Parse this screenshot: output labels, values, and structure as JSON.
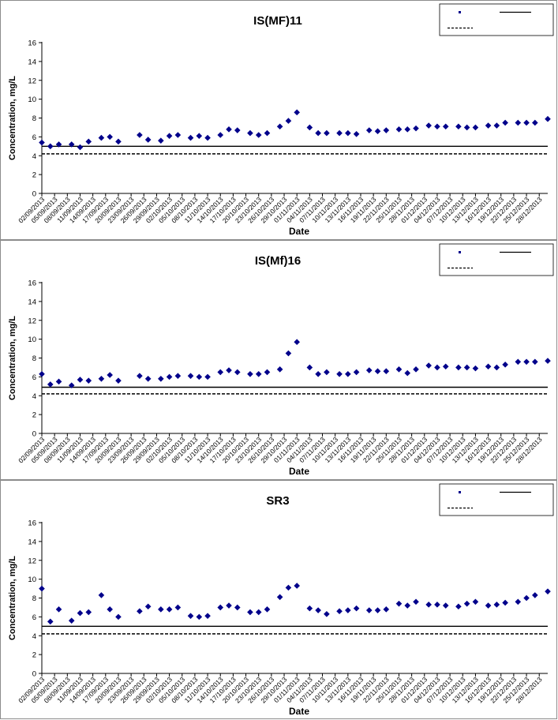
{
  "chart_data": [
    {
      "type": "scatter",
      "title": "IS(MF)11",
      "xlabel": "Date",
      "ylabel": "Concentration, mg/L",
      "ylim": [
        0,
        16
      ],
      "yticks": [
        0,
        2,
        4,
        6,
        8,
        10,
        12,
        14,
        16
      ],
      "x_range": [
        "02/09/2013",
        "30/12/2013"
      ],
      "xtick_labels": [
        "02/09/2013",
        "05/09/2013",
        "08/09/2013",
        "11/09/2013",
        "14/09/2013",
        "17/09/2013",
        "20/09/2013",
        "23/09/2013",
        "26/09/2013",
        "29/09/2013",
        "02/10/2013",
        "05/10/2013",
        "08/10/2013",
        "11/10/2013",
        "14/10/2013",
        "17/10/2013",
        "20/10/2013",
        "23/10/2013",
        "26/10/2013",
        "29/10/2013",
        "01/11/2013",
        "04/11/2013",
        "07/11/2013",
        "10/11/2013",
        "13/11/2013",
        "16/11/2013",
        "19/11/2013",
        "22/11/2013",
        "25/11/2013",
        "28/11/2013",
        "01/12/2013",
        "04/12/2013",
        "07/12/2013",
        "10/12/2013",
        "13/12/2013",
        "16/12/2013",
        "19/12/2013",
        "22/12/2013",
        "25/12/2013",
        "28/12/2013"
      ],
      "series": [
        {
          "kind": "points",
          "color": "#00008B",
          "x": [
            "02/09/2013",
            "04/09/2013",
            "06/09/2013",
            "09/09/2013",
            "11/09/2013",
            "13/09/2013",
            "16/09/2013",
            "18/09/2013",
            "20/09/2013",
            "25/09/2013",
            "27/09/2013",
            "30/09/2013",
            "02/10/2013",
            "04/10/2013",
            "07/10/2013",
            "09/10/2013",
            "11/10/2013",
            "14/10/2013",
            "16/10/2013",
            "18/10/2013",
            "21/10/2013",
            "23/10/2013",
            "25/10/2013",
            "28/10/2013",
            "30/10/2013",
            "01/11/2013",
            "04/11/2013",
            "06/11/2013",
            "08/11/2013",
            "11/11/2013",
            "13/11/2013",
            "15/11/2013",
            "18/11/2013",
            "20/11/2013",
            "22/11/2013",
            "25/11/2013",
            "27/11/2013",
            "29/11/2013",
            "02/12/2013",
            "04/12/2013",
            "06/12/2013",
            "09/12/2013",
            "11/12/2013",
            "13/12/2013",
            "16/12/2013",
            "18/12/2013",
            "20/12/2013",
            "23/12/2013",
            "25/12/2013",
            "27/12/2013",
            "30/12/2013"
          ],
          "y": [
            5.4,
            5.0,
            5.2,
            5.2,
            4.9,
            5.5,
            5.9,
            6.0,
            5.5,
            6.2,
            5.7,
            5.6,
            6.1,
            6.2,
            5.9,
            6.1,
            5.9,
            6.2,
            6.8,
            6.7,
            6.4,
            6.2,
            6.4,
            7.1,
            7.7,
            8.6,
            7.0,
            6.4,
            6.4,
            6.4,
            6.4,
            6.3,
            6.7,
            6.6,
            6.7,
            6.8,
            6.8,
            6.9,
            7.2,
            7.1,
            7.1,
            7.1,
            7.0,
            7.0,
            7.2,
            7.2,
            7.5,
            7.5,
            7.5,
            7.5,
            7.9
          ]
        },
        {
          "kind": "solid-line",
          "color": "#000000",
          "y": 5.0
        },
        {
          "kind": "dashed-line",
          "color": "#000000",
          "y": 4.2
        }
      ]
    },
    {
      "type": "scatter",
      "title": "IS(Mf)16",
      "xlabel": "Date",
      "ylabel": "Concentration, mg/L",
      "ylim": [
        0,
        16
      ],
      "yticks": [
        0,
        2,
        4,
        6,
        8,
        10,
        12,
        14,
        16
      ],
      "x_range": [
        "02/09/2013",
        "30/12/2013"
      ],
      "xtick_labels": [
        "02/09/2013",
        "05/09/2013",
        "08/09/2013",
        "11/09/2013",
        "14/09/2013",
        "17/09/2013",
        "20/09/2013",
        "23/09/2013",
        "26/09/2013",
        "29/09/2013",
        "02/10/2013",
        "05/10/2013",
        "08/10/2013",
        "11/10/2013",
        "14/10/2013",
        "17/10/2013",
        "20/10/2013",
        "23/10/2013",
        "26/10/2013",
        "29/10/2013",
        "01/11/2013",
        "04/11/2013",
        "07/11/2013",
        "10/11/2013",
        "13/11/2013",
        "16/11/2013",
        "19/11/2013",
        "22/11/2013",
        "25/11/2013",
        "28/11/2013",
        "01/12/2013",
        "04/12/2013",
        "07/12/2013",
        "10/12/2013",
        "13/12/2013",
        "16/12/2013",
        "19/12/2013",
        "22/12/2013",
        "25/12/2013",
        "28/12/2013"
      ],
      "series": [
        {
          "kind": "points",
          "color": "#00008B",
          "x": [
            "02/09/2013",
            "04/09/2013",
            "06/09/2013",
            "09/09/2013",
            "11/09/2013",
            "13/09/2013",
            "16/09/2013",
            "18/09/2013",
            "20/09/2013",
            "25/09/2013",
            "27/09/2013",
            "30/09/2013",
            "02/10/2013",
            "04/10/2013",
            "07/10/2013",
            "09/10/2013",
            "11/10/2013",
            "14/10/2013",
            "16/10/2013",
            "18/10/2013",
            "21/10/2013",
            "23/10/2013",
            "25/10/2013",
            "28/10/2013",
            "30/10/2013",
            "01/11/2013",
            "04/11/2013",
            "06/11/2013",
            "08/11/2013",
            "11/11/2013",
            "13/11/2013",
            "15/11/2013",
            "18/11/2013",
            "20/11/2013",
            "22/11/2013",
            "25/11/2013",
            "27/11/2013",
            "29/11/2013",
            "02/12/2013",
            "04/12/2013",
            "06/12/2013",
            "09/12/2013",
            "11/12/2013",
            "13/12/2013",
            "16/12/2013",
            "18/12/2013",
            "20/12/2013",
            "23/12/2013",
            "25/12/2013",
            "27/12/2013",
            "30/12/2013"
          ],
          "y": [
            6.3,
            5.2,
            5.5,
            5.1,
            5.7,
            5.6,
            5.8,
            6.2,
            5.6,
            6.1,
            5.8,
            5.8,
            6.0,
            6.1,
            6.1,
            6.0,
            6.0,
            6.5,
            6.7,
            6.5,
            6.3,
            6.3,
            6.5,
            6.8,
            8.5,
            9.7,
            7.0,
            6.3,
            6.5,
            6.3,
            6.3,
            6.5,
            6.7,
            6.6,
            6.6,
            6.8,
            6.4,
            6.8,
            7.2,
            7.0,
            7.1,
            7.0,
            7.0,
            6.9,
            7.1,
            7.0,
            7.3,
            7.6,
            7.6,
            7.6,
            7.7
          ]
        },
        {
          "kind": "solid-line",
          "color": "#000000",
          "y": 4.9
        },
        {
          "kind": "dashed-line",
          "color": "#000000",
          "y": 4.2
        }
      ]
    },
    {
      "type": "scatter",
      "title": "SR3",
      "xlabel": "Date",
      "ylabel": "Concentration, mg/L",
      "ylim": [
        0,
        16
      ],
      "yticks": [
        0,
        2,
        4,
        6,
        8,
        10,
        12,
        14,
        16
      ],
      "x_range": [
        "02/09/2013",
        "30/12/2013"
      ],
      "xtick_labels": [
        "02/09/2013",
        "05/09/2013",
        "08/09/2013",
        "11/09/2013",
        "14/09/2013",
        "17/09/2013",
        "20/09/2013",
        "23/09/2013",
        "26/09/2013",
        "29/09/2013",
        "02/10/2013",
        "05/10/2013",
        "08/10/2013",
        "11/10/2013",
        "14/10/2013",
        "17/10/2013",
        "20/10/2013",
        "23/10/2013",
        "26/10/2013",
        "29/10/2013",
        "01/11/2013",
        "04/11/2013",
        "07/11/2013",
        "10/11/2013",
        "13/11/2013",
        "16/11/2013",
        "19/11/2013",
        "22/11/2013",
        "25/11/2013",
        "28/11/2013",
        "01/12/2013",
        "04/12/2013",
        "07/12/2013",
        "10/12/2013",
        "13/12/2013",
        "16/12/2013",
        "19/12/2013",
        "22/12/2013",
        "25/12/2013",
        "28/12/2013"
      ],
      "series": [
        {
          "kind": "points",
          "color": "#00008B",
          "x": [
            "02/09/2013",
            "04/09/2013",
            "06/09/2013",
            "09/09/2013",
            "11/09/2013",
            "13/09/2013",
            "16/09/2013",
            "18/09/2013",
            "20/09/2013",
            "25/09/2013",
            "27/09/2013",
            "30/09/2013",
            "02/10/2013",
            "04/10/2013",
            "07/10/2013",
            "09/10/2013",
            "11/10/2013",
            "14/10/2013",
            "16/10/2013",
            "18/10/2013",
            "21/10/2013",
            "23/10/2013",
            "25/10/2013",
            "28/10/2013",
            "30/10/2013",
            "01/11/2013",
            "04/11/2013",
            "06/11/2013",
            "08/11/2013",
            "11/11/2013",
            "13/11/2013",
            "15/11/2013",
            "18/11/2013",
            "20/11/2013",
            "22/11/2013",
            "25/11/2013",
            "27/11/2013",
            "29/11/2013",
            "02/12/2013",
            "04/12/2013",
            "06/12/2013",
            "09/12/2013",
            "11/12/2013",
            "13/12/2013",
            "16/12/2013",
            "18/12/2013",
            "20/12/2013",
            "23/12/2013",
            "25/12/2013",
            "27/12/2013",
            "30/12/2013"
          ],
          "y": [
            9.0,
            5.5,
            6.8,
            5.6,
            6.4,
            6.5,
            8.3,
            6.8,
            6.0,
            6.6,
            7.1,
            6.8,
            6.8,
            7.0,
            6.1,
            6.0,
            6.1,
            7.0,
            7.2,
            7.0,
            6.5,
            6.5,
            6.8,
            8.1,
            9.1,
            9.3,
            6.9,
            6.7,
            6.3,
            6.6,
            6.7,
            6.9,
            6.7,
            6.7,
            6.8,
            7.4,
            7.2,
            7.6,
            7.3,
            7.3,
            7.2,
            7.1,
            7.4,
            7.6,
            7.2,
            7.3,
            7.5,
            7.6,
            8.0,
            8.3,
            8.7
          ]
        },
        {
          "kind": "solid-line",
          "color": "#000000",
          "y": 5.0
        },
        {
          "kind": "dashed-line",
          "color": "#000000",
          "y": 4.2
        }
      ]
    }
  ]
}
